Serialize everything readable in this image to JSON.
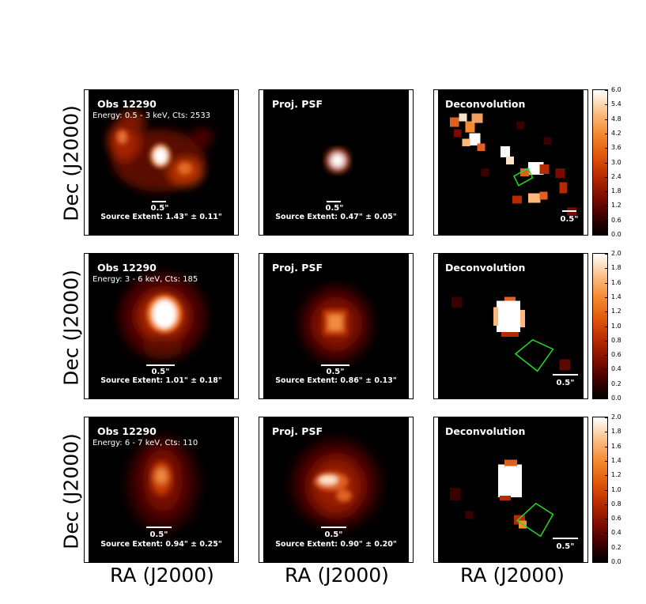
{
  "axes": {
    "y_label": "Dec (J2000)",
    "x_label": "RA (J2000)"
  },
  "rows": [
    {
      "obs": {
        "title": "Obs 12290",
        "subtitle": "Energy: 0.5 - 3 keV, Cts: 2533",
        "scale": "0.5\"",
        "extent": "Source Extent: 1.43\" ± 0.11\""
      },
      "psf": {
        "title": "Proj. PSF",
        "scale": "0.5\"",
        "extent": "Source Extent: 0.47\" ± 0.05\""
      },
      "deconv": {
        "title": "Deconvolution",
        "scale": "0.5\""
      },
      "colorbar_ticks": [
        "6.0",
        "5.4",
        "4.8",
        "4.2",
        "3.6",
        "3.0",
        "2.4",
        "1.8",
        "1.2",
        "0.6",
        "0.0"
      ]
    },
    {
      "obs": {
        "title": "Obs 12290",
        "subtitle": "Energy: 3 - 6 keV, Cts: 185",
        "scale": "0.5\"",
        "extent": "Source Extent: 1.01\" ± 0.18\""
      },
      "psf": {
        "title": "Proj. PSF",
        "scale": "0.5\"",
        "extent": "Source Extent: 0.86\" ± 0.13\""
      },
      "deconv": {
        "title": "Deconvolution",
        "scale": "0.5\""
      },
      "colorbar_ticks": [
        "2.0",
        "1.8",
        "1.6",
        "1.4",
        "1.2",
        "1.0",
        "0.8",
        "0.6",
        "0.4",
        "0.2",
        "0.0"
      ]
    },
    {
      "obs": {
        "title": "Obs 12290",
        "subtitle": "Energy: 6 - 7 keV, Cts: 110",
        "scale": "0.5\"",
        "extent": "Source Extent: 0.94\" ± 0.25\""
      },
      "psf": {
        "title": "Proj. PSF",
        "scale": "0.5\"",
        "extent": "Source Extent: 0.90\" ± 0.20\""
      },
      "deconv": {
        "title": "Deconvolution",
        "scale": "0.5\""
      },
      "colorbar_ticks": [
        "2.0",
        "1.8",
        "1.6",
        "1.4",
        "1.2",
        "1.0",
        "0.8",
        "0.6",
        "0.4",
        "0.2",
        "0.0"
      ]
    }
  ],
  "colors": {
    "colormap": [
      "#000000",
      "#3a0000",
      "#7a0a00",
      "#b52a00",
      "#e0580a",
      "#f58a30",
      "#fbb87a",
      "#fde3c8",
      "#ffffff"
    ],
    "region_outline": "#22dd22"
  }
}
